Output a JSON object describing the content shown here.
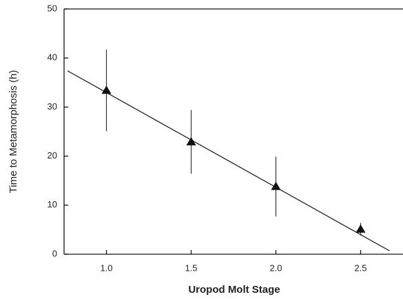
{
  "chart_data": {
    "type": "scatter",
    "x_label": "Uropod Molt Stage",
    "y_label": "Time to Metamorphosis (h)",
    "x": [
      1.0,
      1.5,
      2.0,
      2.5
    ],
    "y": [
      33.4,
      22.9,
      13.8,
      5.1
    ],
    "yerr": [
      8.3,
      6.5,
      6.1,
      1.3
    ],
    "fit": {
      "x": [
        0.77,
        2.67
      ],
      "y": [
        37.4,
        0.7
      ]
    },
    "color": "#111111",
    "xlim": [
      0.75,
      2.75
    ],
    "ylim": [
      0,
      50
    ],
    "xticks": [
      {
        "value": 1,
        "label": "1.0"
      },
      1.5,
      {
        "value": 2,
        "label": "2.0"
      },
      2.5
    ],
    "yticks": [
      0,
      10,
      20,
      30,
      40,
      50
    ],
    "grid": false
  }
}
